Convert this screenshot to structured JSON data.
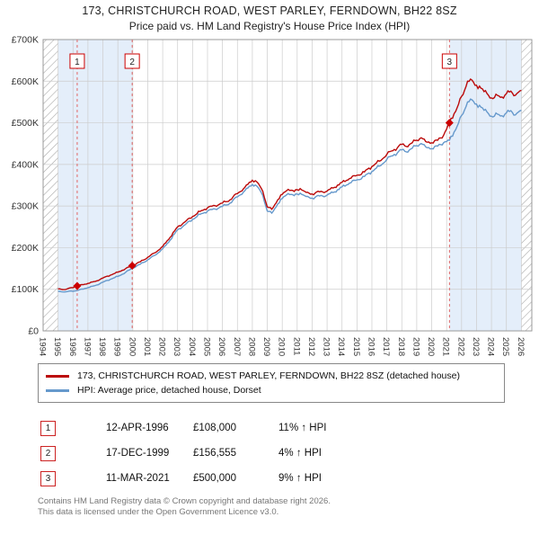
{
  "title": "173, CHRISTCHURCH ROAD, WEST PARLEY, FERNDOWN, BH22 8SZ",
  "subtitle": "Price paid vs. HM Land Registry's House Price Index (HPI)",
  "colors": {
    "property_line": "#bb0a0a",
    "hpi_line": "#6699cc",
    "shade": "#e4eefa",
    "grid": "#cccccc",
    "marker": "#cc0000",
    "dashed": "#e06666",
    "hatch": "#aaaaaa",
    "axis_text": "#333333",
    "frame": "#999999"
  },
  "chart_data": {
    "type": "line",
    "x_range": [
      1994,
      2026.7
    ],
    "ylim": [
      0,
      700000
    ],
    "y_ticks": [
      {
        "value": 0,
        "label": "£0"
      },
      {
        "value": 100000,
        "label": "£100K"
      },
      {
        "value": 200000,
        "label": "£200K"
      },
      {
        "value": 300000,
        "label": "£300K"
      },
      {
        "value": 400000,
        "label": "£400K"
      },
      {
        "value": 500000,
        "label": "£500K"
      },
      {
        "value": 600000,
        "label": "£600K"
      },
      {
        "value": 700000,
        "label": "£700K"
      }
    ],
    "x_ticks": [
      1994,
      1995,
      1996,
      1997,
      1998,
      1999,
      2000,
      2001,
      2002,
      2003,
      2004,
      2005,
      2006,
      2007,
      2008,
      2009,
      2010,
      2011,
      2012,
      2013,
      2014,
      2015,
      2016,
      2017,
      2018,
      2019,
      2020,
      2021,
      2022,
      2023,
      2024,
      2025,
      2026
    ],
    "shaded_regions": [
      [
        1995,
        1999.96
      ],
      [
        2021.19,
        2026
      ]
    ],
    "hatched_regions": [
      [
        1994,
        1995
      ],
      [
        2026,
        2026.7
      ]
    ],
    "series": [
      {
        "name": "173, CHRISTCHURCH ROAD, WEST PARLEY, FERNDOWN, BH22 8SZ (detached house)",
        "color": "#bb0a0a",
        "points": [
          [
            1995.0,
            101000
          ],
          [
            1995.5,
            99500
          ],
          [
            1996.28,
            108000
          ],
          [
            1997.0,
            114000
          ],
          [
            1997.5,
            119000
          ],
          [
            1998.0,
            127000
          ],
          [
            1998.5,
            134000
          ],
          [
            1999.0,
            141000
          ],
          [
            1999.5,
            149000
          ],
          [
            1999.96,
            156555
          ],
          [
            2000.5,
            166000
          ],
          [
            2001.0,
            177000
          ],
          [
            2001.5,
            188000
          ],
          [
            2002.0,
            203000
          ],
          [
            2002.5,
            225000
          ],
          [
            2003.0,
            250000
          ],
          [
            2003.5,
            262000
          ],
          [
            2004.0,
            275000
          ],
          [
            2004.5,
            287000
          ],
          [
            2005.0,
            296000
          ],
          [
            2005.5,
            301000
          ],
          [
            2006.0,
            307000
          ],
          [
            2006.5,
            315000
          ],
          [
            2007.0,
            330000
          ],
          [
            2007.5,
            345000
          ],
          [
            2008.0,
            362000
          ],
          [
            2008.3,
            358000
          ],
          [
            2008.7,
            335000
          ],
          [
            2009.0,
            298000
          ],
          [
            2009.3,
            292000
          ],
          [
            2009.7,
            315000
          ],
          [
            2010.0,
            328000
          ],
          [
            2010.4,
            340000
          ],
          [
            2010.8,
            335000
          ],
          [
            2011.2,
            342000
          ],
          [
            2011.6,
            333000
          ],
          [
            2012.0,
            329000
          ],
          [
            2012.5,
            334000
          ],
          [
            2013.0,
            336000
          ],
          [
            2013.5,
            345000
          ],
          [
            2014.0,
            357000
          ],
          [
            2014.5,
            366000
          ],
          [
            2015.0,
            374000
          ],
          [
            2015.5,
            382000
          ],
          [
            2016.0,
            395000
          ],
          [
            2016.5,
            408000
          ],
          [
            2017.0,
            424000
          ],
          [
            2017.5,
            436000
          ],
          [
            2018.0,
            448000
          ],
          [
            2018.3,
            443000
          ],
          [
            2018.7,
            452000
          ],
          [
            2019.0,
            458000
          ],
          [
            2019.3,
            464000
          ],
          [
            2019.6,
            455000
          ],
          [
            2020.0,
            452000
          ],
          [
            2020.4,
            458000
          ],
          [
            2020.8,
            470000
          ],
          [
            2021.19,
            500000
          ],
          [
            2021.5,
            522000
          ],
          [
            2021.8,
            545000
          ],
          [
            2022.1,
            568000
          ],
          [
            2022.4,
            600000
          ],
          [
            2022.6,
            605000
          ],
          [
            2022.9,
            590000
          ],
          [
            2023.2,
            588000
          ],
          [
            2023.5,
            575000
          ],
          [
            2023.8,
            566000
          ],
          [
            2024.1,
            558000
          ],
          [
            2024.4,
            566000
          ],
          [
            2024.7,
            562000
          ],
          [
            2025.0,
            570000
          ],
          [
            2025.3,
            576000
          ],
          [
            2025.6,
            566000
          ],
          [
            2026.0,
            578000
          ]
        ]
      },
      {
        "name": "HPI: Average price, detached house, Dorset",
        "color": "#6699cc",
        "points": [
          [
            1995.0,
            95000
          ],
          [
            1995.5,
            94000
          ],
          [
            1996.28,
            97000
          ],
          [
            1997.0,
            104000
          ],
          [
            1997.5,
            109000
          ],
          [
            1998.0,
            117000
          ],
          [
            1998.5,
            124000
          ],
          [
            1999.0,
            131000
          ],
          [
            1999.5,
            140000
          ],
          [
            1999.96,
            150500
          ],
          [
            2000.5,
            160000
          ],
          [
            2001.0,
            171000
          ],
          [
            2001.5,
            182000
          ],
          [
            2002.0,
            197000
          ],
          [
            2002.5,
            218000
          ],
          [
            2003.0,
            243000
          ],
          [
            2003.5,
            255000
          ],
          [
            2004.0,
            268000
          ],
          [
            2004.5,
            280000
          ],
          [
            2005.0,
            288000
          ],
          [
            2005.5,
            293000
          ],
          [
            2006.0,
            299000
          ],
          [
            2006.5,
            307000
          ],
          [
            2007.0,
            322000
          ],
          [
            2007.5,
            337000
          ],
          [
            2008.0,
            352000
          ],
          [
            2008.3,
            348000
          ],
          [
            2008.7,
            325000
          ],
          [
            2009.0,
            288000
          ],
          [
            2009.3,
            283000
          ],
          [
            2009.7,
            305000
          ],
          [
            2010.0,
            318000
          ],
          [
            2010.4,
            330000
          ],
          [
            2010.8,
            325000
          ],
          [
            2011.2,
            331000
          ],
          [
            2011.6,
            323000
          ],
          [
            2012.0,
            319000
          ],
          [
            2012.5,
            324000
          ],
          [
            2013.0,
            326000
          ],
          [
            2013.5,
            334000
          ],
          [
            2014.0,
            346000
          ],
          [
            2014.5,
            355000
          ],
          [
            2015.0,
            363000
          ],
          [
            2015.5,
            371000
          ],
          [
            2016.0,
            383000
          ],
          [
            2016.5,
            396000
          ],
          [
            2017.0,
            412000
          ],
          [
            2017.5,
            424000
          ],
          [
            2018.0,
            435000
          ],
          [
            2018.3,
            430000
          ],
          [
            2018.7,
            439000
          ],
          [
            2019.0,
            445000
          ],
          [
            2019.3,
            450000
          ],
          [
            2019.6,
            442000
          ],
          [
            2020.0,
            438000
          ],
          [
            2020.4,
            444000
          ],
          [
            2020.8,
            452000
          ],
          [
            2021.19,
            458000
          ],
          [
            2021.5,
            478000
          ],
          [
            2021.8,
            500000
          ],
          [
            2022.1,
            522000
          ],
          [
            2022.4,
            550000
          ],
          [
            2022.6,
            557000
          ],
          [
            2022.9,
            545000
          ],
          [
            2023.2,
            542000
          ],
          [
            2023.5,
            530000
          ],
          [
            2023.8,
            522000
          ],
          [
            2024.1,
            514000
          ],
          [
            2024.4,
            521000
          ],
          [
            2024.7,
            517000
          ],
          [
            2025.0,
            524000
          ],
          [
            2025.3,
            529000
          ],
          [
            2025.6,
            519000
          ],
          [
            2026.0,
            530000
          ]
        ]
      }
    ],
    "markers": [
      {
        "n": "1",
        "x": 1996.28,
        "y": 108000
      },
      {
        "n": "2",
        "x": 1999.96,
        "y": 156555
      },
      {
        "n": "3",
        "x": 2021.19,
        "y": 500000
      }
    ]
  },
  "legend": {
    "items": [
      {
        "label": "173, CHRISTCHURCH ROAD, WEST PARLEY, FERNDOWN, BH22 8SZ (detached house)",
        "color": "#bb0a0a"
      },
      {
        "label": "HPI: Average price, detached house, Dorset",
        "color": "#6699cc"
      }
    ]
  },
  "transactions": [
    {
      "num": "1",
      "date": "12-APR-1996",
      "price": "£108,000",
      "hpi": "11% ↑ HPI"
    },
    {
      "num": "2",
      "date": "17-DEC-1999",
      "price": "£156,555",
      "hpi": "4% ↑ HPI"
    },
    {
      "num": "3",
      "date": "11-MAR-2021",
      "price": "£500,000",
      "hpi": "9% ↑ HPI"
    }
  ],
  "footer": {
    "line1": "Contains HM Land Registry data © Crown copyright and database right 2026.",
    "line2": "This data is licensed under the Open Government Licence v3.0."
  }
}
